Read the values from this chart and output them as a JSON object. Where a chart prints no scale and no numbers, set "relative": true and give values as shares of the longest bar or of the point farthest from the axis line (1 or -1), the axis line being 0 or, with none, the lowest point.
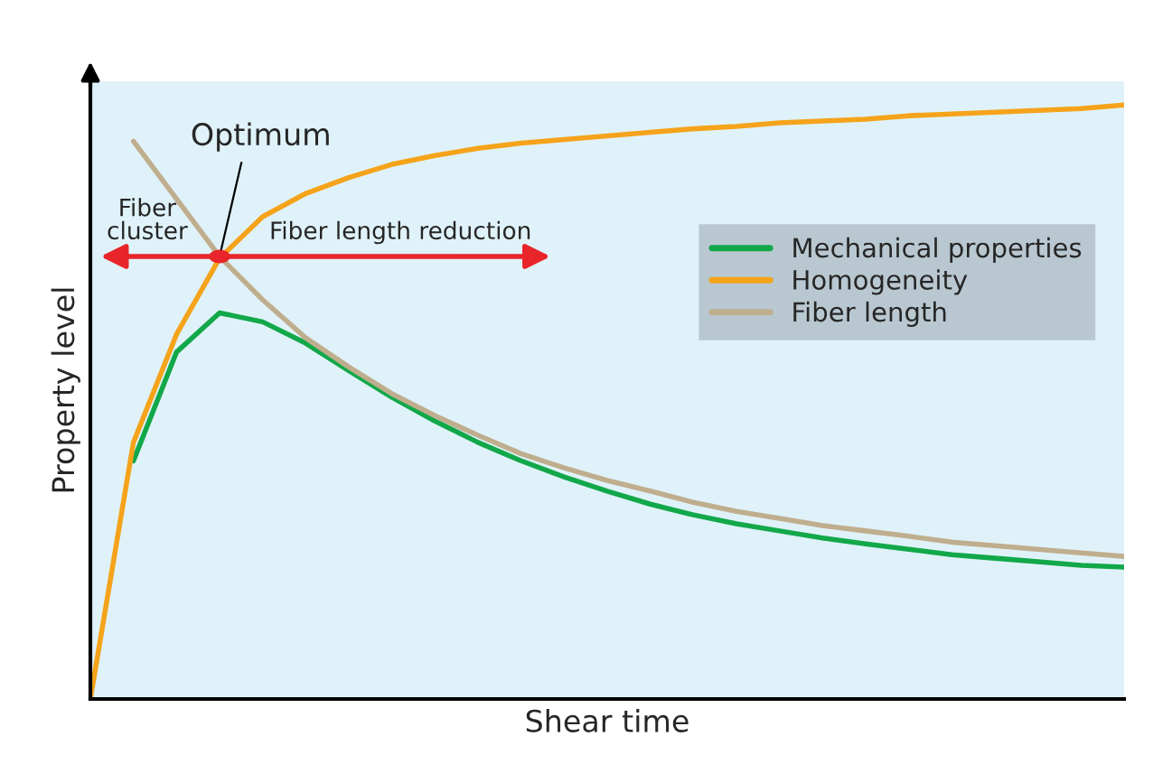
{
  "chart_data": {
    "type": "line",
    "relative": true,
    "xlabel": "Shear time",
    "ylabel": "Property level",
    "categories": [
      null,
      null,
      null,
      null,
      null,
      null,
      null,
      null,
      null,
      null,
      null,
      null,
      null,
      null,
      null,
      null,
      null,
      null,
      null,
      null,
      null,
      null,
      null,
      null,
      null
    ],
    "series": [
      {
        "name": "Mechanical properties",
        "color": "#12a84a",
        "values": [
          null,
          0.401,
          0.584,
          0.65,
          0.635,
          0.599,
          0.553,
          0.508,
          0.468,
          0.432,
          0.401,
          0.374,
          0.35,
          0.328,
          0.31,
          0.295,
          0.283,
          0.271,
          0.261,
          0.252,
          0.243,
          0.237,
          0.231,
          0.225,
          0.222
        ]
      },
      {
        "name": "Homogeneity",
        "color": "#f5a31a",
        "values": [
          0,
          0.432,
          0.614,
          0.742,
          0.812,
          0.851,
          0.878,
          0.9,
          0.915,
          0.927,
          0.936,
          0.942,
          0.948,
          0.954,
          0.96,
          0.964,
          0.97,
          0.973,
          0.976,
          0.982,
          0.985,
          0.988,
          0.991,
          0.994,
          1.0
        ]
      },
      {
        "name": "Fiber length",
        "color": "#bfae8e",
        "values": [
          null,
          0.939,
          0.842,
          0.745,
          0.672,
          0.608,
          0.559,
          0.514,
          0.477,
          0.444,
          0.413,
          0.389,
          0.368,
          0.35,
          0.331,
          0.316,
          0.304,
          0.292,
          0.283,
          0.274,
          0.264,
          0.258,
          0.252,
          0.246,
          0.24
        ]
      }
    ],
    "annotations": [
      "Optimum",
      "Fiber\ncluster",
      "Fiber length reduction"
    ],
    "legend": "top right",
    "grid": false,
    "tick_labels": false
  }
}
